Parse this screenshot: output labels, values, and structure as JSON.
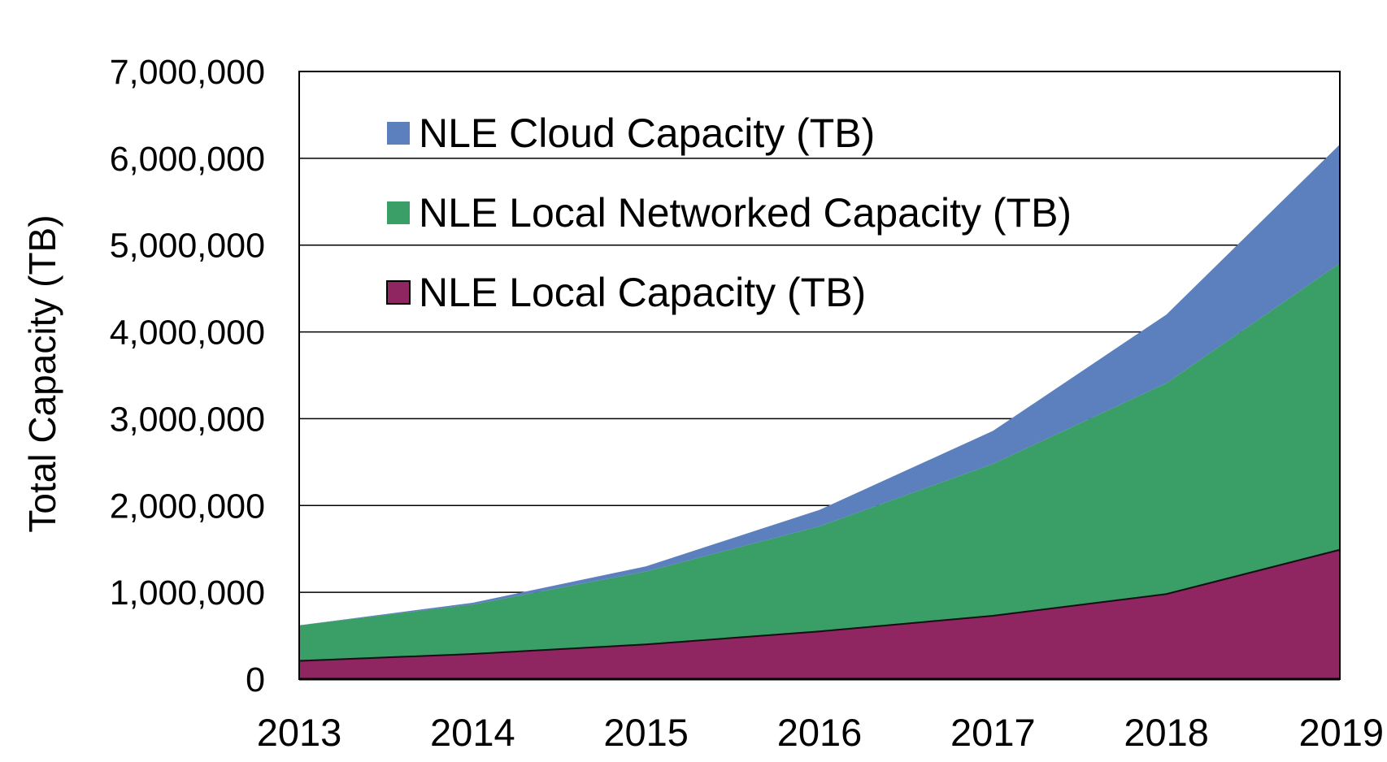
{
  "chart_data": {
    "type": "area",
    "stacked": true,
    "x": [
      "2013",
      "2014",
      "2015",
      "2016",
      "2017",
      "2018",
      "2019"
    ],
    "series": [
      {
        "name": "NLE Local Capacity (TB)",
        "color": "#8f2561",
        "values": [
          210000,
          290000,
          400000,
          550000,
          730000,
          980000,
          1490000
        ]
      },
      {
        "name": "NLE Local Networked Capacity (TB)",
        "color": "#3a9e67",
        "values": [
          410000,
          570000,
          840000,
          1210000,
          1750000,
          2430000,
          3300000
        ]
      },
      {
        "name": "NLE Cloud Capacity (TB)",
        "color": "#5b80bd",
        "values": [
          0,
          20000,
          60000,
          190000,
          380000,
          790000,
          1370000
        ]
      }
    ],
    "title": "",
    "xlabel": "",
    "ylabel": "Total Capacity (TB)",
    "ylim": [
      0,
      7000000
    ],
    "yticks": [
      0,
      1000000,
      2000000,
      3000000,
      4000000,
      5000000,
      6000000,
      7000000
    ],
    "ytick_labels": [
      "0",
      "1,000,000",
      "2,000,000",
      "3,000,000",
      "4,000,000",
      "5,000,000",
      "6,000,000",
      "7,000,000"
    ],
    "grid": "horizontal",
    "legend_position": "top-left inside",
    "legend_order": [
      "NLE Cloud Capacity (TB)",
      "NLE Local Networked Capacity (TB)",
      "NLE Local Capacity (TB)"
    ]
  }
}
